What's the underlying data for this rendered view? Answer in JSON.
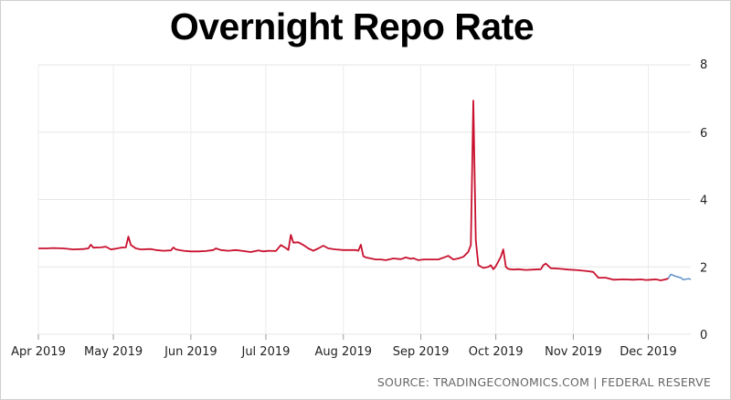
{
  "chart_data": {
    "type": "line",
    "title": "Overnight Repo Rate",
    "source": "SOURCE: TRADINGECONOMICS.COM | FEDERAL RESERVE",
    "xlabel": "",
    "ylabel": "",
    "x_ticks": [
      "Apr 2019",
      "May 2019",
      "Jun 2019",
      "Jul 2019",
      "Aug 2019",
      "Sep 2019",
      "Oct 2019",
      "Nov 2019",
      "Dec 2019"
    ],
    "ylim": [
      0,
      8
    ],
    "y_ticks": [
      0,
      2,
      4,
      6,
      8
    ],
    "y_axis_position": "right",
    "grid": true,
    "colors": {
      "main": "#c8102e",
      "forecast": "#5b8fc7"
    },
    "series": [
      {
        "values": [
          [
            0,
            2.55
          ],
          [
            3,
            2.55
          ],
          [
            6,
            2.56
          ],
          [
            10,
            2.55
          ],
          [
            14,
            2.52
          ],
          [
            18,
            2.53
          ],
          [
            20,
            2.55
          ],
          [
            21,
            2.66
          ],
          [
            22,
            2.57
          ],
          [
            25,
            2.58
          ],
          [
            27,
            2.6
          ],
          [
            29,
            2.52
          ],
          [
            31,
            2.54
          ],
          [
            33,
            2.57
          ],
          [
            35,
            2.58
          ],
          [
            36,
            2.9
          ],
          [
            37,
            2.65
          ],
          [
            39,
            2.55
          ],
          [
            41,
            2.52
          ],
          [
            45,
            2.53
          ],
          [
            47,
            2.5
          ],
          [
            50,
            2.48
          ],
          [
            53,
            2.49
          ],
          [
            54,
            2.58
          ],
          [
            55,
            2.52
          ],
          [
            58,
            2.48
          ],
          [
            61,
            2.46
          ],
          [
            64,
            2.46
          ],
          [
            67,
            2.47
          ],
          [
            70,
            2.5
          ],
          [
            71,
            2.55
          ],
          [
            73,
            2.5
          ],
          [
            76,
            2.48
          ],
          [
            79,
            2.5
          ],
          [
            82,
            2.47
          ],
          [
            85,
            2.44
          ],
          [
            88,
            2.49
          ],
          [
            90,
            2.46
          ],
          [
            92,
            2.48
          ],
          [
            95,
            2.47
          ],
          [
            97,
            2.65
          ],
          [
            99,
            2.56
          ],
          [
            100,
            2.5
          ],
          [
            101,
            2.95
          ],
          [
            102,
            2.72
          ],
          [
            104,
            2.73
          ],
          [
            106,
            2.65
          ],
          [
            108,
            2.55
          ],
          [
            110,
            2.48
          ],
          [
            112,
            2.55
          ],
          [
            114,
            2.63
          ],
          [
            116,
            2.55
          ],
          [
            119,
            2.52
          ],
          [
            122,
            2.5
          ],
          [
            125,
            2.5
          ],
          [
            127,
            2.5
          ],
          [
            128,
            2.48
          ],
          [
            129,
            2.66
          ],
          [
            130,
            2.32
          ],
          [
            131,
            2.28
          ],
          [
            133,
            2.25
          ],
          [
            135,
            2.22
          ],
          [
            137,
            2.22
          ],
          [
            139,
            2.2
          ],
          [
            142,
            2.25
          ],
          [
            145,
            2.23
          ],
          [
            147,
            2.28
          ],
          [
            149,
            2.24
          ],
          [
            150,
            2.26
          ],
          [
            152,
            2.2
          ],
          [
            154,
            2.22
          ],
          [
            157,
            2.22
          ],
          [
            160,
            2.22
          ],
          [
            163,
            2.3
          ],
          [
            164,
            2.33
          ],
          [
            166,
            2.22
          ],
          [
            168,
            2.25
          ],
          [
            170,
            2.3
          ],
          [
            172,
            2.45
          ],
          [
            173,
            2.65
          ],
          [
            174,
            6.94
          ],
          [
            175,
            2.8
          ],
          [
            176,
            2.05
          ],
          [
            178,
            1.97
          ],
          [
            180,
            2.0
          ],
          [
            181,
            2.05
          ],
          [
            182,
            1.93
          ],
          [
            183,
            2.02
          ],
          [
            185,
            2.3
          ],
          [
            186,
            2.52
          ],
          [
            187,
            2.0
          ],
          [
            188,
            1.94
          ],
          [
            190,
            1.92
          ],
          [
            192,
            1.93
          ],
          [
            195,
            1.91
          ],
          [
            198,
            1.92
          ],
          [
            201,
            1.93
          ],
          [
            202,
            2.05
          ],
          [
            203,
            2.1
          ],
          [
            205,
            1.96
          ],
          [
            208,
            1.95
          ],
          [
            212,
            1.92
          ],
          [
            216,
            1.9
          ],
          [
            220,
            1.87
          ],
          [
            222,
            1.85
          ],
          [
            224,
            1.68
          ],
          [
            227,
            1.68
          ],
          [
            230,
            1.62
          ],
          [
            234,
            1.63
          ],
          [
            238,
            1.62
          ],
          [
            241,
            1.63
          ],
          [
            243,
            1.61
          ],
          [
            245,
            1.62
          ],
          [
            247,
            1.63
          ],
          [
            249,
            1.6
          ],
          [
            251,
            1.63
          ],
          [
            252,
            1.66
          ]
        ]
      },
      {
        "values": [
          [
            252,
            1.66
          ],
          [
            253,
            1.78
          ],
          [
            255,
            1.72
          ],
          [
            257,
            1.68
          ],
          [
            258,
            1.62
          ],
          [
            260,
            1.65
          ],
          [
            261,
            1.63
          ]
        ]
      }
    ]
  }
}
